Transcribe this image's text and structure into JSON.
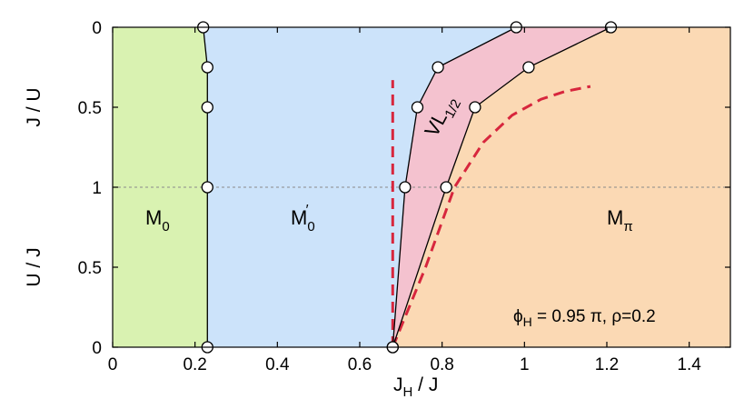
{
  "chart_data": {
    "type": "phase_diagram",
    "xlabel": {
      "main": "J",
      "sub": "H",
      "rest": " / J"
    },
    "ylabel_top": "J / U",
    "ylabel_bottom": "U / J",
    "xlim": [
      0,
      1.5
    ],
    "x_ticks": [
      0,
      0.2,
      0.4,
      0.6,
      0.8,
      1,
      1.2,
      1.4
    ],
    "x_tick_labels": [
      "0",
      "0.2",
      "0.4",
      "0.6",
      "0.8",
      "1",
      "1.2",
      "1.4"
    ],
    "y_note": "vertical axis: top half is J/U from 0 (top) to 1 (middle); bottom half is U/J from 1 (middle) to 0 (bottom)",
    "y_ticks": [
      {
        "label": "0",
        "J_over_U": 0
      },
      {
        "label": "0.5",
        "J_over_U": 0.5
      },
      {
        "label": "1",
        "J_over_U": 1
      },
      {
        "label": "0.5",
        "U_over_J": 0.5
      },
      {
        "label": "0",
        "U_over_J": 0
      }
    ],
    "grid": false,
    "reference_line": {
      "at": "J/U = U/J = 1",
      "style": "dotted"
    },
    "regions": [
      {
        "name": "M",
        "sub": "0",
        "prime": false,
        "color": "#d9f2b1"
      },
      {
        "name": "M",
        "sub": "0",
        "prime": true,
        "color": "#cce3fa"
      },
      {
        "name": "VL",
        "sub": "1/2",
        "prime": false,
        "color": "#f4c2cf"
      },
      {
        "name": "M",
        "sub": "π",
        "prime": false,
        "color": "#fbd9b4"
      }
    ],
    "boundaries": [
      {
        "between": [
          "M_0",
          "M'_0"
        ],
        "points": [
          {
            "x": 0.22,
            "J_over_U": 0
          },
          {
            "x": 0.23,
            "J_over_U": 0.25
          },
          {
            "x": 0.23,
            "J_over_U": 0.5
          },
          {
            "x": 0.23,
            "J_over_U": 1
          },
          {
            "x": 0.23,
            "U_over_J": 0
          }
        ]
      },
      {
        "between": [
          "M'_0",
          "VL_1/2"
        ],
        "points": [
          {
            "x": 0.98,
            "J_over_U": 0
          },
          {
            "x": 0.79,
            "J_over_U": 0.25
          },
          {
            "x": 0.74,
            "J_over_U": 0.5
          },
          {
            "x": 0.71,
            "J_over_U": 1
          },
          {
            "x": 0.68,
            "U_over_J": 0
          }
        ]
      },
      {
        "between": [
          "VL_1/2",
          "M_π"
        ],
        "points": [
          {
            "x": 1.21,
            "J_over_U": 0
          },
          {
            "x": 1.01,
            "J_over_U": 0.25
          },
          {
            "x": 0.88,
            "J_over_U": 0.5
          },
          {
            "x": 0.81,
            "J_over_U": 1
          },
          {
            "x": 0.68,
            "U_over_J": 0
          }
        ]
      }
    ],
    "dashed_curves": [
      {
        "color": "#d7263d",
        "points": [
          {
            "x": 0.68,
            "U_over_J": 0
          },
          {
            "x": 0.68,
            "U_over_J": 0.5
          },
          {
            "x": 0.68,
            "J_over_U": 1
          },
          {
            "x": 0.68,
            "J_over_U": 0.5
          },
          {
            "x": 0.68,
            "J_over_U": 0.33
          }
        ]
      },
      {
        "color": "#d7263d",
        "points": [
          {
            "x": 0.68,
            "U_over_J": 0
          },
          {
            "x": 0.76,
            "U_over_J": 0.5
          },
          {
            "x": 0.83,
            "J_over_U": 1
          },
          {
            "x": 0.9,
            "J_over_U": 0.72
          },
          {
            "x": 0.97,
            "J_over_U": 0.55
          },
          {
            "x": 1.04,
            "J_over_U": 0.45
          },
          {
            "x": 1.1,
            "J_over_U": 0.4
          },
          {
            "x": 1.16,
            "J_over_U": 0.37
          }
        ]
      }
    ],
    "annotation": {
      "phi": "ϕ",
      "phi_sub": "H",
      "text": " = 0.95 π, ρ=0.2"
    }
  }
}
